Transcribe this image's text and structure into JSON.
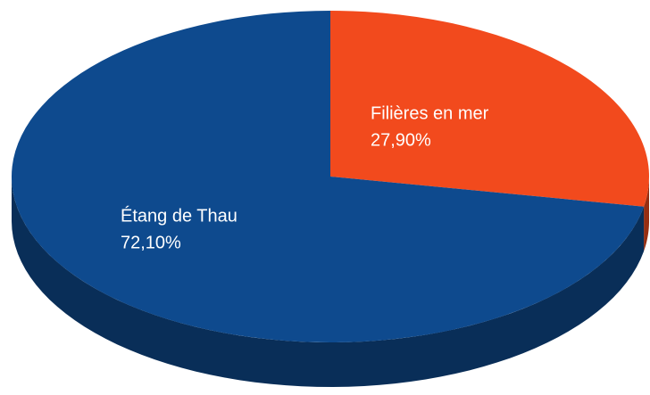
{
  "chart_data": {
    "type": "pie3d",
    "categories": [
      "Filières en mer",
      "Étang de Thau"
    ],
    "values": [
      27.9,
      72.1
    ],
    "value_labels": [
      "27,90%",
      "72,10%"
    ],
    "colors": [
      "#f24a1d",
      "#0e4a8e"
    ]
  }
}
